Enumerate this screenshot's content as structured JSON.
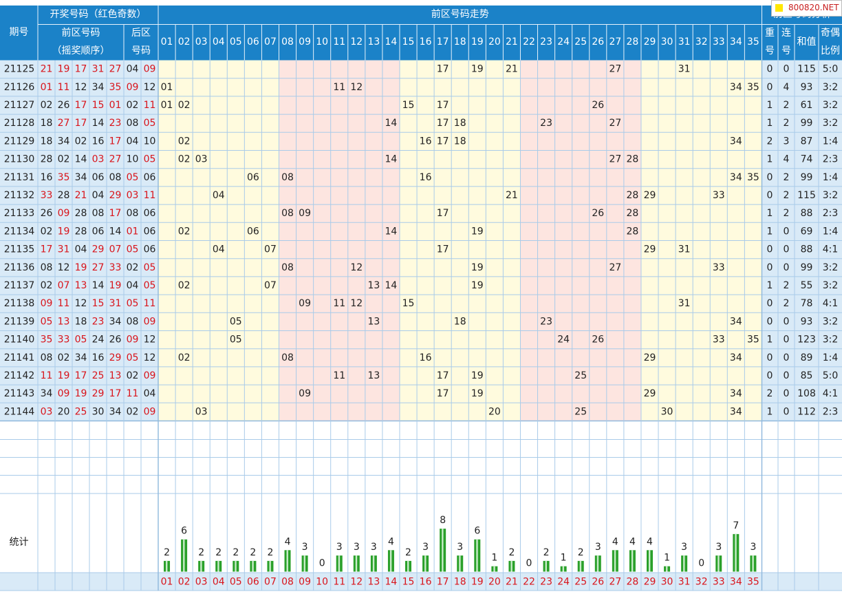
{
  "header": {
    "period_label": "期号",
    "draw_title": "开奖号码（红色奇数）",
    "front_title": "前区号码",
    "front_sub": "（摇奖顺序）",
    "back_title_1": "后区",
    "back_title_2": "号码",
    "trend_title": "前区号码走势",
    "analysis_title": "前区号码分析",
    "repeat_1": "重",
    "repeat_2": "号",
    "consec_1": "连",
    "consec_2": "号",
    "sum": "和值",
    "ratio_1": "奇偶",
    "ratio_2": "比例",
    "numbers": [
      "01",
      "02",
      "03",
      "04",
      "05",
      "06",
      "07",
      "08",
      "09",
      "10",
      "11",
      "12",
      "13",
      "14",
      "15",
      "16",
      "17",
      "18",
      "19",
      "20",
      "21",
      "22",
      "23",
      "24",
      "25",
      "26",
      "27",
      "28",
      "29",
      "30",
      "31",
      "32",
      "33",
      "34",
      "35"
    ]
  },
  "footer": {
    "stats_label": "统计"
  },
  "watermark": {
    "icon": "square-icon",
    "text": "800820.NET"
  },
  "colors": {
    "header_bg": "#1b82c8",
    "header_text": "#ffffff",
    "grid_line": "#a9cbe9",
    "row_bg": "#d9eaf7",
    "zone_yellow": "#fffbde",
    "zone_pink": "#fde5e0",
    "odd_text": "#d9141b",
    "even_text": "#222222",
    "bar_fill": "#2aa02a",
    "bar_highlight": "#c8ecc8"
  },
  "chart_data": {
    "type": "table",
    "title": "前区号码走势",
    "rows": [
      {
        "period": "21125",
        "front": [
          "21",
          "19",
          "17",
          "31",
          "27"
        ],
        "back": [
          "04",
          "09"
        ],
        "repeat": "0",
        "consec": "0",
        "sum": "115",
        "ratio": "5:0"
      },
      {
        "period": "21126",
        "front": [
          "01",
          "11",
          "12",
          "34",
          "35"
        ],
        "back": [
          "09",
          "12"
        ],
        "repeat": "0",
        "consec": "4",
        "sum": "93",
        "ratio": "3:2"
      },
      {
        "period": "21127",
        "front": [
          "02",
          "26",
          "17",
          "15",
          "01"
        ],
        "back": [
          "02",
          "11"
        ],
        "repeat": "1",
        "consec": "2",
        "sum": "61",
        "ratio": "3:2"
      },
      {
        "period": "21128",
        "front": [
          "18",
          "27",
          "17",
          "14",
          "23"
        ],
        "back": [
          "08",
          "05"
        ],
        "repeat": "1",
        "consec": "2",
        "sum": "99",
        "ratio": "3:2"
      },
      {
        "period": "21129",
        "front": [
          "18",
          "34",
          "02",
          "16",
          "17"
        ],
        "back": [
          "04",
          "10"
        ],
        "repeat": "2",
        "consec": "3",
        "sum": "87",
        "ratio": "1:4"
      },
      {
        "period": "21130",
        "front": [
          "28",
          "02",
          "14",
          "03",
          "27"
        ],
        "back": [
          "10",
          "05"
        ],
        "repeat": "1",
        "consec": "4",
        "sum": "74",
        "ratio": "2:3"
      },
      {
        "period": "21131",
        "front": [
          "16",
          "35",
          "34",
          "06",
          "08"
        ],
        "back": [
          "05",
          "06"
        ],
        "repeat": "0",
        "consec": "2",
        "sum": "99",
        "ratio": "1:4"
      },
      {
        "period": "21132",
        "front": [
          "33",
          "28",
          "21",
          "04",
          "29"
        ],
        "back": [
          "03",
          "11"
        ],
        "repeat": "0",
        "consec": "2",
        "sum": "115",
        "ratio": "3:2"
      },
      {
        "period": "21133",
        "front": [
          "26",
          "09",
          "28",
          "08",
          "17"
        ],
        "back": [
          "08",
          "06"
        ],
        "repeat": "1",
        "consec": "2",
        "sum": "88",
        "ratio": "2:3"
      },
      {
        "period": "21134",
        "front": [
          "02",
          "19",
          "28",
          "06",
          "14"
        ],
        "back": [
          "01",
          "06"
        ],
        "repeat": "1",
        "consec": "0",
        "sum": "69",
        "ratio": "1:4"
      },
      {
        "period": "21135",
        "front": [
          "17",
          "31",
          "04",
          "29",
          "07"
        ],
        "back": [
          "05",
          "06"
        ],
        "repeat": "0",
        "consec": "0",
        "sum": "88",
        "ratio": "4:1"
      },
      {
        "period": "21136",
        "front": [
          "08",
          "12",
          "19",
          "27",
          "33"
        ],
        "back": [
          "02",
          "05"
        ],
        "repeat": "0",
        "consec": "0",
        "sum": "99",
        "ratio": "3:2"
      },
      {
        "period": "21137",
        "front": [
          "02",
          "07",
          "13",
          "14",
          "19"
        ],
        "back": [
          "04",
          "05"
        ],
        "repeat": "1",
        "consec": "2",
        "sum": "55",
        "ratio": "3:2"
      },
      {
        "period": "21138",
        "front": [
          "09",
          "11",
          "12",
          "15",
          "31"
        ],
        "back": [
          "05",
          "11"
        ],
        "repeat": "0",
        "consec": "2",
        "sum": "78",
        "ratio": "4:1"
      },
      {
        "period": "21139",
        "front": [
          "05",
          "13",
          "18",
          "23",
          "34"
        ],
        "back": [
          "08",
          "09"
        ],
        "repeat": "0",
        "consec": "0",
        "sum": "93",
        "ratio": "3:2"
      },
      {
        "period": "21140",
        "front": [
          "35",
          "33",
          "05",
          "24",
          "26"
        ],
        "back": [
          "09",
          "12"
        ],
        "repeat": "1",
        "consec": "0",
        "sum": "123",
        "ratio": "3:2"
      },
      {
        "period": "21141",
        "front": [
          "08",
          "02",
          "34",
          "16",
          "29"
        ],
        "back": [
          "05",
          "12"
        ],
        "repeat": "0",
        "consec": "0",
        "sum": "89",
        "ratio": "1:4"
      },
      {
        "period": "21142",
        "front": [
          "11",
          "19",
          "17",
          "25",
          "13"
        ],
        "back": [
          "02",
          "09"
        ],
        "repeat": "0",
        "consec": "0",
        "sum": "85",
        "ratio": "5:0"
      },
      {
        "period": "21143",
        "front": [
          "34",
          "09",
          "19",
          "29",
          "17"
        ],
        "back": [
          "11",
          "04"
        ],
        "repeat": "2",
        "consec": "0",
        "sum": "108",
        "ratio": "4:1"
      },
      {
        "period": "21144",
        "front": [
          "03",
          "20",
          "25",
          "30",
          "34"
        ],
        "back": [
          "02",
          "09"
        ],
        "repeat": "1",
        "consec": "0",
        "sum": "112",
        "ratio": "2:3"
      }
    ],
    "frequency": {
      "numbers": [
        "01",
        "02",
        "03",
        "04",
        "05",
        "06",
        "07",
        "08",
        "09",
        "10",
        "11",
        "12",
        "13",
        "14",
        "15",
        "16",
        "17",
        "18",
        "19",
        "20",
        "21",
        "22",
        "23",
        "24",
        "25",
        "26",
        "27",
        "28",
        "29",
        "30",
        "31",
        "32",
        "33",
        "34",
        "35"
      ],
      "counts": [
        2,
        6,
        2,
        2,
        2,
        2,
        2,
        4,
        3,
        0,
        3,
        3,
        3,
        4,
        2,
        3,
        8,
        3,
        6,
        1,
        2,
        0,
        2,
        1,
        2,
        3,
        4,
        4,
        4,
        1,
        3,
        0,
        3,
        7,
        3
      ]
    }
  }
}
